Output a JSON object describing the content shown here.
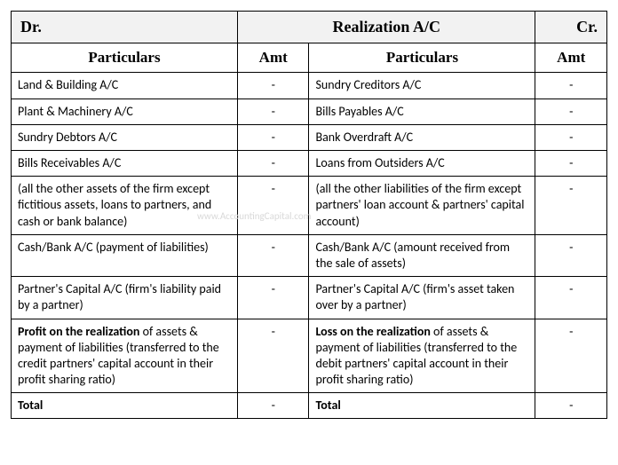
{
  "title": {
    "dr": "Dr.",
    "main": "Realization A/C",
    "cr": "Cr."
  },
  "headers": {
    "particulars": "Particulars",
    "amt": "Amt"
  },
  "watermark": "www.AccountingCapital.com",
  "debit": {
    "rows": [
      {
        "text": "Land & Building A/C",
        "amt": "-"
      },
      {
        "text": "Plant & Machinery A/C",
        "amt": "-"
      },
      {
        "text": "Sundry Debtors A/C",
        "amt": "-"
      },
      {
        "text": "Bills Receivables A/C",
        "amt": "-"
      },
      {
        "text": "(all the other assets of the firm except fictitious assets, loans to partners, and cash or bank balance)",
        "amt": "-"
      },
      {
        "text": "Cash/Bank A/C (payment of liabilities)",
        "amt": "-"
      },
      {
        "text": "Partner's Capital A/C (firm's liability paid by a partner)",
        "amt": "-"
      },
      {
        "bold": "Profit on the realization",
        "rest": " of assets & payment of liabilities (transferred to the credit partners' capital account in their profit sharing ratio)",
        "amt": "-"
      }
    ],
    "total": {
      "label": "Total",
      "amt": "-"
    }
  },
  "credit": {
    "rows": [
      {
        "text": "Sundry Creditors A/C",
        "amt": "-"
      },
      {
        "text": "Bills Payables A/C",
        "amt": "-"
      },
      {
        "text": "Bank Overdraft A/C",
        "amt": "-"
      },
      {
        "text": "Loans from Outsiders A/C",
        "amt": "-"
      },
      {
        "text": "(all the other liabilities of the firm except partners' loan account & partners' capital account)",
        "amt": "-"
      },
      {
        "text": "Cash/Bank A/C (amount received from the sale of assets)",
        "amt": "-"
      },
      {
        "text": "Partner's Capital A/C (firm's asset taken over by a partner)",
        "amt": "-"
      },
      {
        "bold": "Loss on the realization",
        "rest": " of assets & payment of liabilities (transferred to the debit partners' capital account in their profit sharing ratio)",
        "amt": "-"
      }
    ],
    "total": {
      "label": "Total",
      "amt": "-"
    }
  }
}
